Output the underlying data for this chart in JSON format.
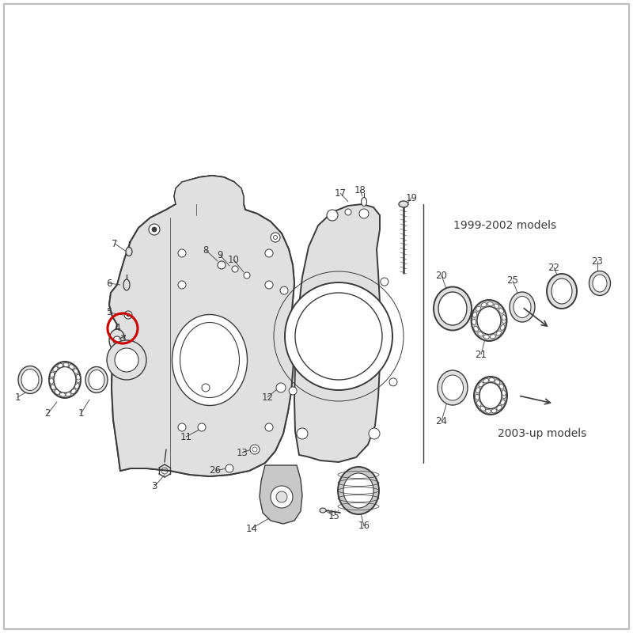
{
  "bg_color": "#ffffff",
  "fg_color": "#3a3a3a",
  "red_color": "#cc0000",
  "border_color": "#bbbbbb",
  "label_1999_2002": "1999-2002 models",
  "label_2003up": "2003-up models",
  "figsize": [
    8.0,
    8.0
  ],
  "dpi": 100,
  "diagram_gray": "#707070",
  "light_gray": "#aaaaaa",
  "fill_gray": "#c8c8c8",
  "light_fill": "#e0e0e0"
}
